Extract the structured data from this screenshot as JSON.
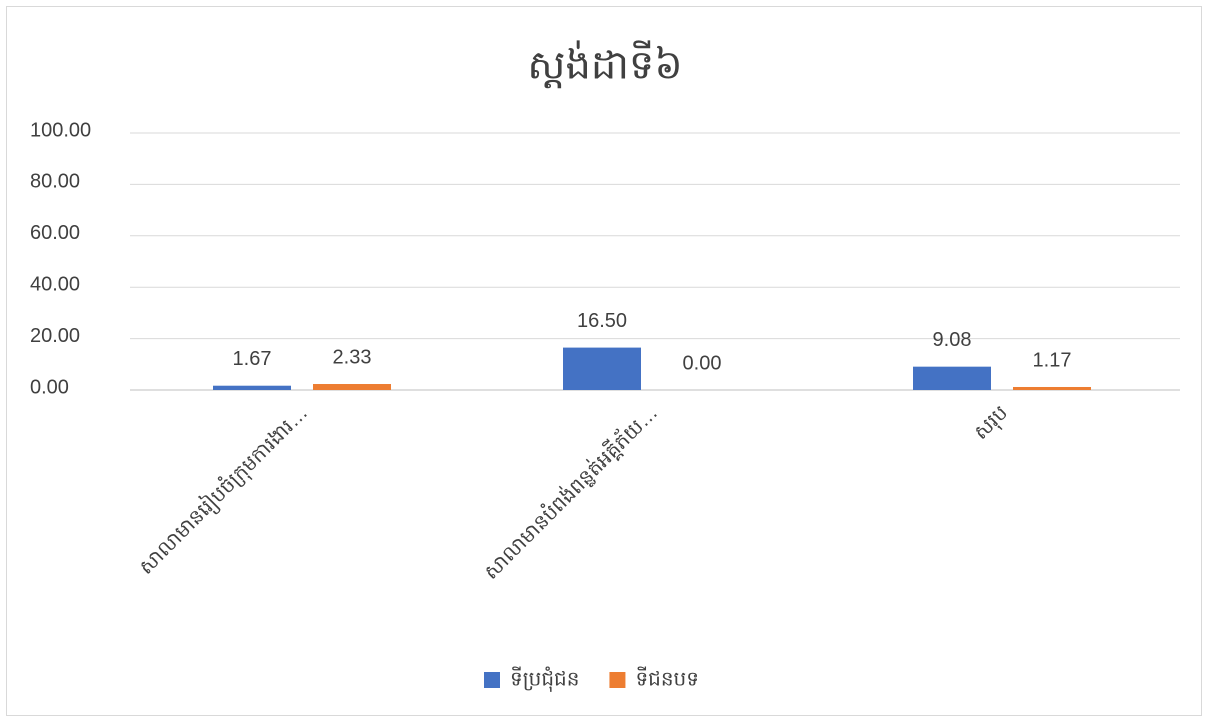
{
  "chart_data": {
    "type": "bar",
    "title": "ស្តង់ដាទី៦",
    "categories": [
      "សាលាមានរៀបចំក្រុមការងារ…",
      "សាលាមានបំពង់ពន្លត់អគ្គីភ័យ…",
      "សរុប"
    ],
    "series": [
      {
        "name": "ទីប្រជុំជន",
        "color": "#4472c4",
        "values": [
          1.67,
          16.5,
          9.08
        ],
        "value_labels": [
          "1.67",
          "16.50",
          "9.08"
        ]
      },
      {
        "name": "ទីជនបទ",
        "color": "#ed7d31",
        "values": [
          2.33,
          0,
          1.17
        ],
        "value_labels": [
          "2.33",
          "0.00",
          "1.17"
        ]
      }
    ],
    "ylim": [
      0,
      100
    ],
    "yticks": [
      {
        "value": 0,
        "label": "0.00"
      },
      {
        "value": 20,
        "label": "20.00"
      },
      {
        "value": 40,
        "label": "40.00"
      },
      {
        "value": 60,
        "label": "60.00"
      },
      {
        "value": 80,
        "label": "80.00"
      },
      {
        "value": 100,
        "label": "100.00"
      }
    ],
    "grid": true,
    "legend": "bottom"
  }
}
